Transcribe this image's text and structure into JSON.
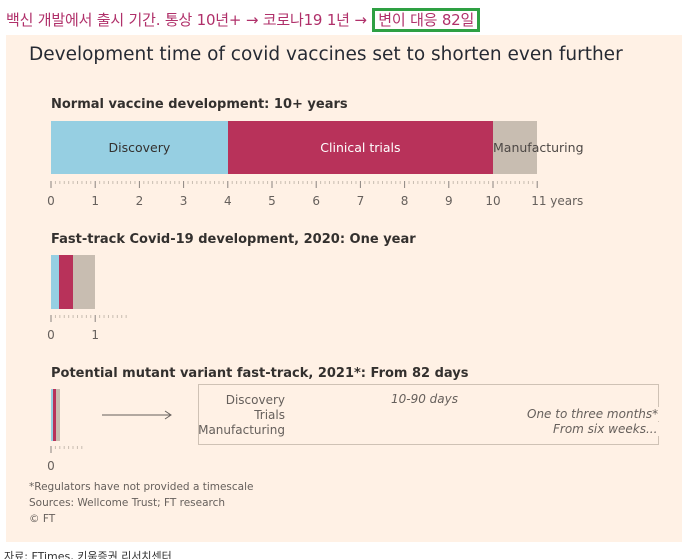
{
  "headline": {
    "prefix": "백신 개발에서 출시 기간. 통상 10년+ → 코로나19 1년 →",
    "highlight": "변이 대응 82일"
  },
  "chart_data": {
    "type": "bar",
    "title": "Development time of covid vaccines set to shorten even further",
    "colors": {
      "discovery": "#96cfe2",
      "clinical": "#b8325a",
      "manufacturing": "#c8bdb1"
    },
    "normal": {
      "title": "Normal vaccine development: 10+ years",
      "segments": [
        {
          "name": "Discovery",
          "start": 0,
          "end": 4
        },
        {
          "name": "Clinical trials",
          "start": 4,
          "end": 10
        },
        {
          "name": "Manufacturing",
          "start": 10,
          "end": 11
        }
      ],
      "ticks": [
        "0",
        "1",
        "2",
        "3",
        "4",
        "5",
        "6",
        "7",
        "8",
        "9",
        "10",
        "11 years"
      ],
      "xlim": [
        0,
        11
      ]
    },
    "covid2020": {
      "title": "Fast-track Covid-19 development, 2020: One year",
      "segments": [
        {
          "start": 0,
          "end": 0.17
        },
        {
          "start": 0.17,
          "end": 0.5
        },
        {
          "start": 0.5,
          "end": 1
        }
      ],
      "ticks": [
        "0",
        "1"
      ]
    },
    "variant2021": {
      "title": "Potential mutant variant fast-track, 2021*: From 82 days",
      "tick": "0",
      "rows": [
        {
          "label": "Discovery",
          "annotation": "10-90 days"
        },
        {
          "label": "Trials",
          "annotation": "One to three months*"
        },
        {
          "label": "Manufacturing",
          "annotation": "From six weeks..."
        }
      ]
    }
  },
  "footnotes": {
    "note": "*Regulators have not provided a timescale",
    "sources": "Sources: Wellcome Trust; FT research",
    "credit": "© FT"
  },
  "source_line": "자료: FTimes, 키움증권 리서치센터"
}
